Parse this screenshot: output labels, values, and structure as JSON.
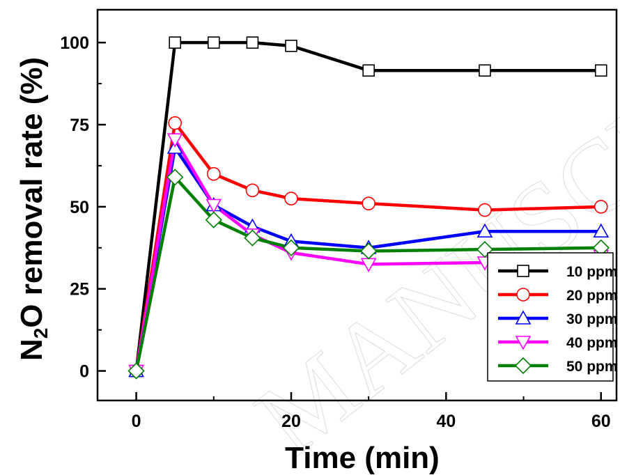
{
  "chart_data": {
    "type": "line",
    "watermark": "MANUSCRIPT",
    "xlabel": "Time (min)",
    "ylabel_main": "N",
    "ylabel_sub": "2",
    "ylabel_rest": "O removal rate (%)",
    "xlim": [
      -5,
      62
    ],
    "ylim": [
      -9,
      110
    ],
    "xticks": [
      0,
      20,
      40,
      60
    ],
    "yticks": [
      0,
      25,
      50,
      75,
      100
    ],
    "x": [
      0,
      5,
      10,
      15,
      20,
      30,
      45,
      60
    ],
    "grid": false,
    "legend_position": "bottom-right",
    "series": [
      {
        "name": "10 ppm",
        "color": "#000000",
        "marker": "square",
        "values": [
          0,
          100,
          100,
          100,
          99,
          91.5,
          91.5,
          91.5
        ]
      },
      {
        "name": "20 ppm",
        "color": "#ff0000",
        "marker": "circle",
        "values": [
          0,
          75.5,
          60,
          55,
          52.5,
          51,
          49,
          50
        ]
      },
      {
        "name": "30 ppm",
        "color": "#0000ff",
        "marker": "triangle-up",
        "values": [
          0,
          68,
          50.5,
          44,
          39.5,
          37.5,
          42.5,
          42.5
        ]
      },
      {
        "name": "40 ppm",
        "color": "#ff00ff",
        "marker": "triangle-down",
        "values": [
          0,
          70.5,
          50.5,
          41.5,
          36,
          32.5,
          33,
          35
        ]
      },
      {
        "name": "50 ppm",
        "color": "#008000",
        "marker": "diamond",
        "values": [
          0,
          59,
          46,
          40.5,
          37.5,
          36.5,
          37,
          37.5
        ]
      }
    ]
  }
}
